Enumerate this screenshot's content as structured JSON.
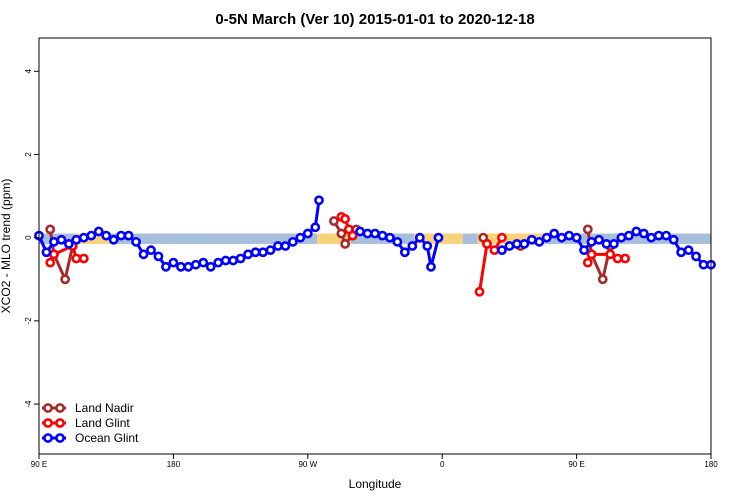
{
  "chart_data": {
    "type": "line",
    "title": "0-5N March (Ver 10)   2015-01-01 to 2020-12-18",
    "xlabel": "Longitude",
    "ylabel": "XCO2 - MLO trend (ppm)",
    "xlim": [
      -90,
      270
    ],
    "ylim": [
      -5.2,
      4.8
    ],
    "x_ticks": [
      {
        "value": -90,
        "label": "90 E"
      },
      {
        "value": -18,
        "label": "180"
      },
      {
        "value": 54,
        "label": "90 W"
      },
      {
        "value": 126,
        "label": "0"
      },
      {
        "value": 198,
        "label": "90 E"
      },
      {
        "value": 270,
        "label": "180"
      }
    ],
    "y_ticks": [
      {
        "value": -4,
        "label": "-4"
      },
      {
        "value": -2,
        "label": "-2"
      },
      {
        "value": 0,
        "label": "0"
      },
      {
        "value": 2,
        "label": "2"
      },
      {
        "value": 4,
        "label": "4"
      }
    ],
    "colors": {
      "land_nadir": "#a52a2a",
      "land_glint": "#ff0000",
      "ocean_glint": "#0000ff",
      "band_ocean": "#a8bfdc",
      "band_land": "#f8d37a"
    },
    "bands": [
      {
        "x0": -90,
        "x1": -71,
        "color": "band_ocean"
      },
      {
        "x0": -71,
        "x1": -52,
        "color": "band_land"
      },
      {
        "x0": -52,
        "x1": 59,
        "color": "band_ocean"
      },
      {
        "x0": 59,
        "x1": 77,
        "color": "band_land"
      },
      {
        "x0": 77,
        "x1": 111,
        "color": "band_ocean"
      },
      {
        "x0": 111,
        "x1": 137,
        "color": "band_land"
      },
      {
        "x0": 137,
        "x1": 145,
        "color": "band_ocean"
      },
      {
        "x0": 145,
        "x1": 180,
        "color": "band_land"
      },
      {
        "x0": 180,
        "x1": 270,
        "color": "band_ocean"
      }
    ],
    "band_y": [
      -0.15,
      0.1
    ],
    "legend_position": "bottom-left",
    "series": [
      {
        "name": "Land Nadir",
        "color": "land_nadir",
        "segments": [
          [
            [
              -84,
              0.2
            ],
            [
              -82,
              -0.4
            ],
            [
              -76,
              -1.0
            ],
            [
              -72,
              -0.2
            ]
          ],
          [
            [
              68,
              0.4
            ],
            [
              72,
              0.1
            ],
            [
              74,
              -0.15
            ],
            [
              78,
              0.05
            ],
            [
              80,
              0.2
            ]
          ],
          [
            [
              148,
              0.0
            ],
            [
              150,
              -0.15
            ]
          ],
          [
            [
              168,
              -0.2
            ]
          ],
          [
            [
              204,
              0.2
            ],
            [
              206,
              -0.4
            ],
            [
              212,
              -1.0
            ],
            [
              216,
              -0.2
            ]
          ]
        ]
      },
      {
        "name": "Land Glint",
        "color": "land_glint",
        "segments": [
          [
            [
              -84,
              -0.6
            ],
            [
              -82,
              -0.4
            ],
            [
              -72,
              -0.2
            ],
            [
              -70,
              -0.5
            ],
            [
              -66,
              -0.5
            ]
          ],
          [
            [
              72,
              0.5
            ],
            [
              74,
              0.45
            ],
            [
              76,
              0.2
            ],
            [
              78,
              0.05
            ]
          ],
          [
            [
              146,
              -1.3
            ],
            [
              150,
              -0.15
            ],
            [
              154,
              -0.3
            ],
            [
              158,
              0.0
            ]
          ],
          [
            [
              204,
              -0.6
            ],
            [
              206,
              -0.4
            ],
            [
              216,
              -0.4
            ],
            [
              220,
              -0.5
            ],
            [
              224,
              -0.5
            ]
          ]
        ]
      },
      {
        "name": "Ocean Glint",
        "color": "ocean_glint",
        "segments": [
          [
            [
              -90,
              0.05
            ],
            [
              -86,
              -0.35
            ],
            [
              -82,
              -0.1
            ],
            [
              -78,
              -0.05
            ],
            [
              -74,
              -0.15
            ],
            [
              -70,
              -0.05
            ],
            [
              -66,
              0.0
            ],
            [
              -62,
              0.05
            ],
            [
              -58,
              0.15
            ],
            [
              -54,
              0.05
            ],
            [
              -50,
              -0.05
            ],
            [
              -46,
              0.05
            ],
            [
              -42,
              0.05
            ],
            [
              -38,
              -0.1
            ],
            [
              -34,
              -0.4
            ],
            [
              -30,
              -0.3
            ],
            [
              -26,
              -0.45
            ],
            [
              -22,
              -0.7
            ],
            [
              -18,
              -0.6
            ],
            [
              -14,
              -0.7
            ],
            [
              -10,
              -0.7
            ],
            [
              -6,
              -0.65
            ],
            [
              -2,
              -0.6
            ],
            [
              2,
              -0.7
            ],
            [
              6,
              -0.6
            ],
            [
              10,
              -0.55
            ],
            [
              14,
              -0.55
            ],
            [
              18,
              -0.5
            ],
            [
              22,
              -0.4
            ],
            [
              26,
              -0.35
            ],
            [
              30,
              -0.35
            ],
            [
              34,
              -0.3
            ],
            [
              38,
              -0.2
            ],
            [
              42,
              -0.2
            ],
            [
              46,
              -0.1
            ],
            [
              50,
              0.0
            ],
            [
              54,
              0.1
            ],
            [
              58,
              0.25
            ],
            [
              60,
              0.9
            ]
          ],
          [
            [
              82,
              0.15
            ],
            [
              86,
              0.1
            ],
            [
              90,
              0.1
            ],
            [
              94,
              0.05
            ],
            [
              98,
              0.0
            ],
            [
              102,
              -0.1
            ],
            [
              106,
              -0.35
            ],
            [
              110,
              -0.2
            ],
            [
              114,
              0.0
            ],
            [
              118,
              -0.2
            ],
            [
              120,
              -0.7
            ],
            [
              124,
              0.0
            ]
          ],
          [
            [
              158,
              -0.3
            ],
            [
              162,
              -0.2
            ],
            [
              166,
              -0.15
            ],
            [
              170,
              -0.15
            ],
            [
              174,
              -0.05
            ],
            [
              178,
              -0.1
            ],
            [
              182,
              0.0
            ],
            [
              186,
              0.1
            ],
            [
              190,
              0.0
            ],
            [
              194,
              0.05
            ],
            [
              198,
              0.0
            ],
            [
              202,
              -0.3
            ],
            [
              206,
              -0.1
            ],
            [
              210,
              -0.05
            ],
            [
              214,
              -0.15
            ],
            [
              218,
              -0.15
            ],
            [
              222,
              0.0
            ],
            [
              226,
              0.05
            ],
            [
              230,
              0.15
            ],
            [
              234,
              0.1
            ],
            [
              238,
              0.0
            ],
            [
              242,
              0.05
            ],
            [
              246,
              0.05
            ],
            [
              250,
              -0.05
            ],
            [
              254,
              -0.35
            ],
            [
              258,
              -0.3
            ],
            [
              262,
              -0.45
            ],
            [
              266,
              -0.65
            ],
            [
              270,
              -0.65
            ]
          ]
        ]
      }
    ]
  }
}
